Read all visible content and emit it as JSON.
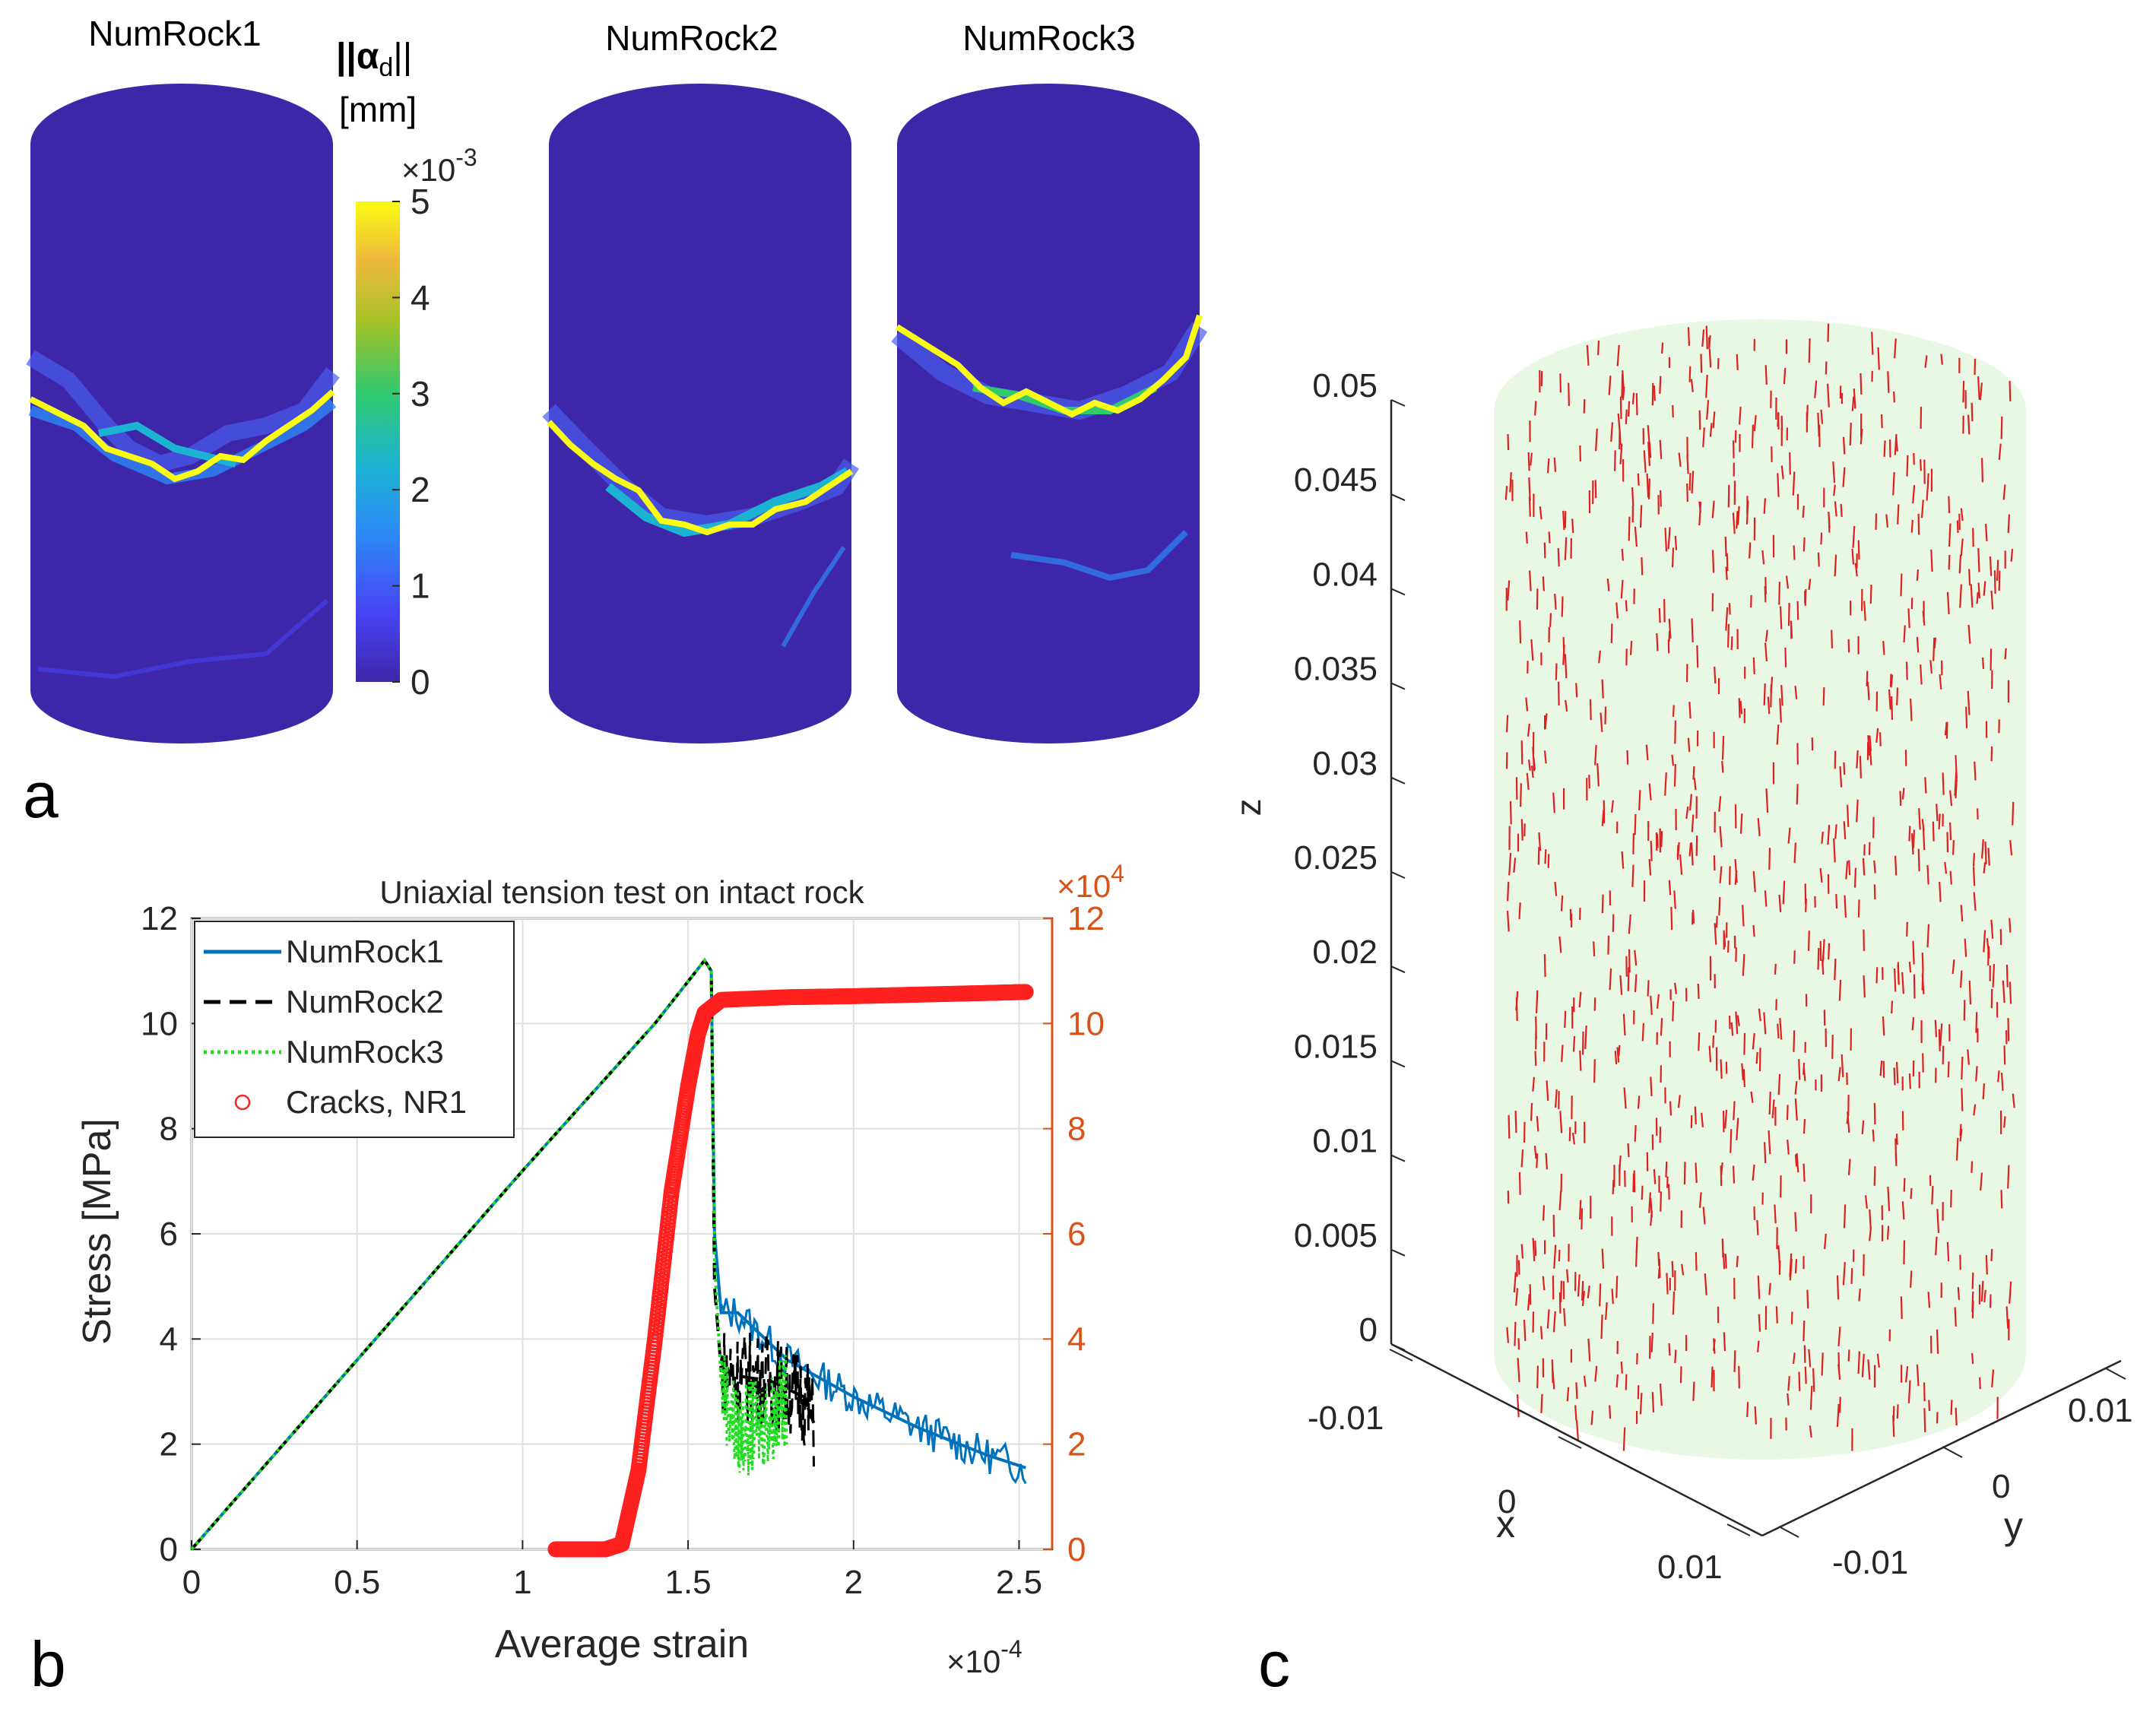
{
  "panel_labels": {
    "a": "a",
    "b": "b",
    "c": "c"
  },
  "panel_a": {
    "titles": [
      "NumRock1",
      "NumRock2",
      "NumRock3"
    ],
    "colorbar": {
      "label_top": "||α",
      "label_sub": "d",
      "label_end": "||",
      "unit": "[mm]",
      "multiplier_base": "×10",
      "multiplier_exp": "-3",
      "ticks": [
        "0",
        "1",
        "2",
        "3",
        "4",
        "5"
      ],
      "colors": [
        "#3e26a8",
        "#4743f4",
        "#2e87f7",
        "#1cb3d3",
        "#2fc96e",
        "#a6c227",
        "#f0ba3c",
        "#f9fb14"
      ]
    },
    "body_color": "#3e26a8"
  },
  "chart_data": {
    "type": "line",
    "title": "Uniaxial tension test on intact rock",
    "xlabel": "Average strain",
    "ylabel": "Stress [MPa]",
    "xlim": [
      0,
      2.6
    ],
    "ylim": [
      0,
      12
    ],
    "y2lim": [
      0,
      12
    ],
    "x_multiplier": {
      "base": "×10",
      "exp": "-4"
    },
    "y2_multiplier": {
      "base": "×10",
      "exp": "4"
    },
    "x_ticks": [
      "0",
      "0.5",
      "1",
      "1.5",
      "2",
      "2.5"
    ],
    "y_ticks": [
      "0",
      "2",
      "4",
      "6",
      "8",
      "10",
      "12"
    ],
    "y2_ticks": [
      "0",
      "2",
      "4",
      "6",
      "8",
      "10",
      "12"
    ],
    "legend_position": "top-left",
    "series": [
      {
        "name": "NumRock1",
        "color": "#0072bd",
        "style": "solid",
        "x": [
          0,
          0.5,
          1.0,
          1.4,
          1.5,
          1.55,
          1.57,
          1.58,
          1.6,
          1.65,
          1.8,
          2.0,
          2.2,
          2.4,
          2.52
        ],
        "y": [
          0,
          3.6,
          7.2,
          10.0,
          10.8,
          11.2,
          11.0,
          6.0,
          4.5,
          4.5,
          3.6,
          2.9,
          2.3,
          1.8,
          1.55
        ]
      },
      {
        "name": "NumRock2",
        "color": "#000000",
        "style": "dashed",
        "x": [
          0,
          0.5,
          1.0,
          1.4,
          1.5,
          1.55,
          1.57,
          1.58,
          1.6,
          1.65,
          1.75,
          1.85,
          1.88
        ],
        "y": [
          0,
          3.6,
          7.2,
          10.0,
          10.8,
          11.2,
          11.0,
          5.0,
          3.4,
          3.3,
          3.2,
          2.9,
          2.4
        ]
      },
      {
        "name": "NumRock3",
        "color": "#22dd22",
        "style": "dotted",
        "x": [
          0,
          0.5,
          1.0,
          1.4,
          1.5,
          1.55,
          1.57,
          1.58,
          1.6,
          1.65,
          1.75,
          1.8
        ],
        "y": [
          0,
          3.6,
          7.2,
          10.0,
          10.8,
          11.2,
          11.0,
          5.5,
          3.2,
          2.2,
          2.5,
          2.9
        ]
      },
      {
        "name": "Cracks, NR1",
        "color": "#ff2020",
        "axis": "right",
        "marker": "circle",
        "x": [
          1.1,
          1.25,
          1.3,
          1.35,
          1.4,
          1.45,
          1.5,
          1.53,
          1.55,
          1.57,
          1.6,
          1.8,
          2.0,
          2.2,
          2.4,
          2.52
        ],
        "y": [
          0,
          0,
          0.1,
          1.5,
          4.0,
          6.8,
          8.8,
          9.8,
          10.2,
          10.3,
          10.45,
          10.5,
          10.52,
          10.55,
          10.58,
          10.6
        ]
      }
    ]
  },
  "panel_c": {
    "z_label": "z",
    "x_label": "x",
    "y_label": "y",
    "z_ticks": [
      "0",
      "0.005",
      "0.01",
      "0.015",
      "0.02",
      "0.025",
      "0.03",
      "0.035",
      "0.04",
      "0.045",
      "0.05"
    ],
    "x_ticks": [
      "-0.01",
      "0",
      "0.01"
    ],
    "y_ticks": [
      "-0.01",
      "0",
      "0.01"
    ],
    "cylinder_color": "#e8f8e4",
    "crack_color": "#e02020",
    "crack_count": 1100
  }
}
